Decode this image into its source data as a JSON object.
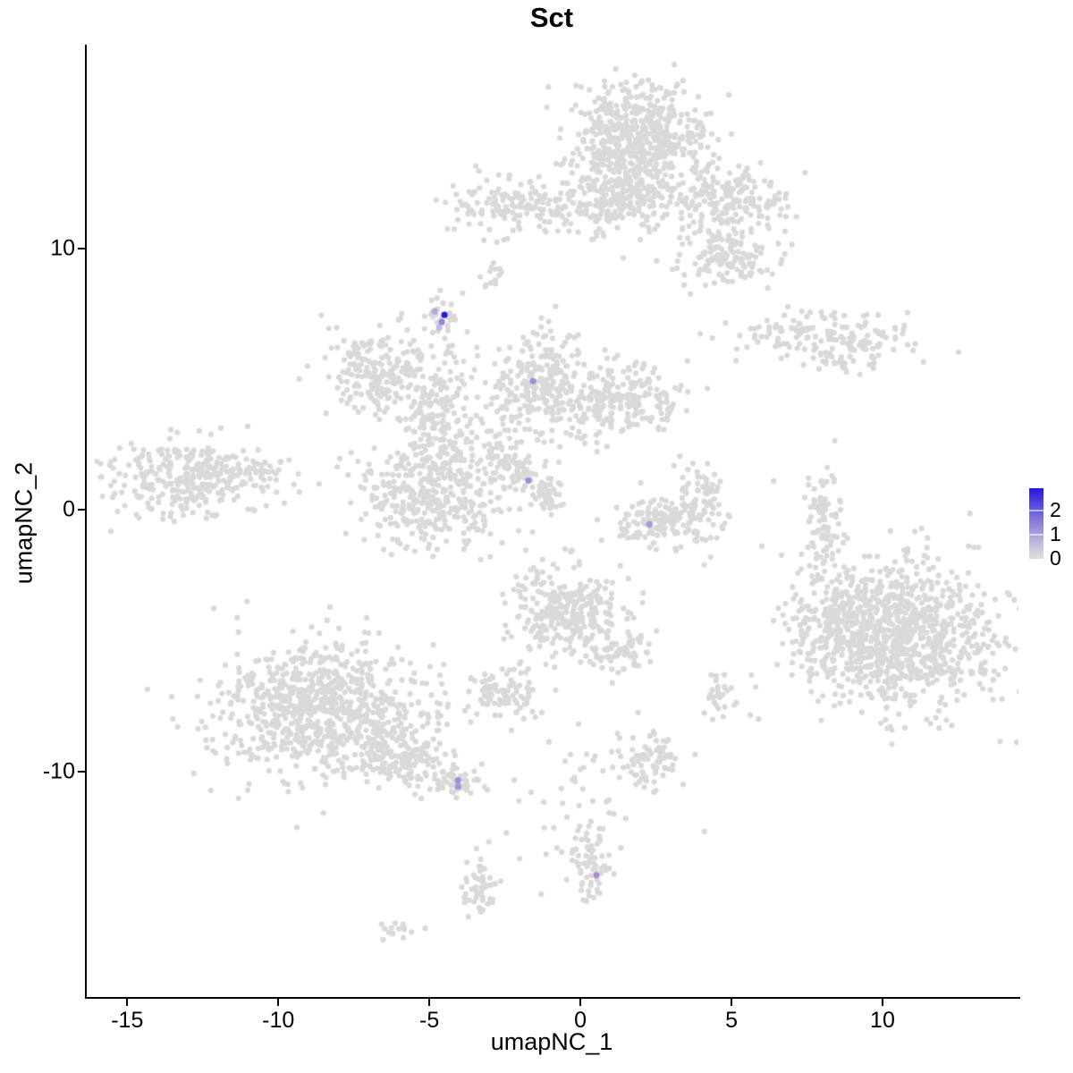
{
  "title": "Sct",
  "axes": {
    "x": {
      "label": "umapNC_1",
      "ticks": [
        -15,
        -10,
        -5,
        0,
        5,
        10
      ]
    },
    "y": {
      "label": "umapNC_2",
      "ticks": [
        10,
        0,
        -10
      ]
    }
  },
  "legend": {
    "ticks": [
      2,
      1,
      0
    ],
    "min": 0,
    "max": 2.9,
    "low_color": "#dcdcdc",
    "high_color": "#2517e0"
  },
  "chart_data": {
    "type": "scatter",
    "title": "Sct",
    "xlabel": "umapNC_1",
    "ylabel": "umapNC_2",
    "xlim": [
      -16.4,
      14.5
    ],
    "ylim": [
      -18.7,
      17.8
    ],
    "grid": false,
    "legend_position": "right",
    "base_point_color": "#d9d9d9",
    "point_radius_px": 3.1,
    "colorbar": {
      "min": 0,
      "max": 2.9,
      "ticks": [
        0,
        1,
        2
      ],
      "low": "#dcdcdc",
      "high": "#2517e0"
    },
    "clusters": [
      {
        "x": 1.8,
        "y": 14.3,
        "sx": 1.15,
        "sy": 0.95,
        "n": 550
      },
      {
        "x": 1.5,
        "y": 12.0,
        "sx": 0.85,
        "sy": 0.75,
        "n": 180
      },
      {
        "x": 4.8,
        "y": 11.9,
        "sx": 1.0,
        "sy": 0.65,
        "n": 200
      },
      {
        "x": 4.9,
        "y": 9.7,
        "sx": 0.8,
        "sy": 0.6,
        "n": 140
      },
      {
        "x": -2.1,
        "y": 11.6,
        "sx": 1.2,
        "sy": 0.55,
        "n": 160
      },
      {
        "x": 0.1,
        "y": 11.4,
        "sx": 0.6,
        "sy": 0.5,
        "n": 40
      },
      {
        "x": -2.9,
        "y": 8.9,
        "sx": 0.2,
        "sy": 0.35,
        "n": 14
      },
      {
        "x": 8.1,
        "y": 6.7,
        "sx": 1.5,
        "sy": 0.45,
        "n": 150
      },
      {
        "x": 8.8,
        "y": 5.9,
        "sx": 0.5,
        "sy": 0.3,
        "n": 35
      },
      {
        "x": -6.6,
        "y": 5.3,
        "sx": 0.95,
        "sy": 0.8,
        "n": 210
      },
      {
        "x": -4.8,
        "y": 3.7,
        "sx": 0.55,
        "sy": 0.8,
        "n": 110
      },
      {
        "x": -5.0,
        "y": 0.5,
        "sx": 1.2,
        "sy": 1.0,
        "n": 380
      },
      {
        "x": -1.3,
        "y": 4.9,
        "sx": 0.85,
        "sy": 0.95,
        "n": 260
      },
      {
        "x": 1.4,
        "y": 4.1,
        "sx": 1.0,
        "sy": 0.7,
        "n": 210
      },
      {
        "x": -2.6,
        "y": 2.1,
        "sx": 0.3,
        "sy": 0.3,
        "n": 40
      },
      {
        "x": -1.9,
        "y": 1.4,
        "sx": 0.3,
        "sy": 0.3,
        "n": 40
      },
      {
        "x": -1.1,
        "y": 0.6,
        "sx": 0.3,
        "sy": 0.3,
        "n": 40
      },
      {
        "x": -3.6,
        "y": 3.2,
        "sx": 1.3,
        "sy": 1.2,
        "n": 70
      },
      {
        "x": -13.1,
        "y": 1.2,
        "sx": 1.3,
        "sy": 0.75,
        "n": 300
      },
      {
        "x": -10.9,
        "y": 1.5,
        "sx": 0.7,
        "sy": 0.4,
        "n": 40
      },
      {
        "x": 3.0,
        "y": -0.5,
        "sx": 1.0,
        "sy": 0.5,
        "n": 160
      },
      {
        "x": 3.9,
        "y": 0.8,
        "sx": 0.35,
        "sy": 0.5,
        "n": 50
      },
      {
        "x": 8.0,
        "y": -0.2,
        "sx": 0.3,
        "sy": 1.2,
        "n": 80
      },
      {
        "x": 10.6,
        "y": -4.8,
        "sx": 1.6,
        "sy": 1.4,
        "n": 950
      },
      {
        "x": 8.3,
        "y": -4.3,
        "sx": 0.7,
        "sy": 1.1,
        "n": 160
      },
      {
        "x": -0.4,
        "y": -3.9,
        "sx": 1.0,
        "sy": 0.95,
        "n": 300
      },
      {
        "x": 1.4,
        "y": -5.4,
        "sx": 0.55,
        "sy": 0.4,
        "n": 60
      },
      {
        "x": -2.5,
        "y": -7.0,
        "sx": 0.6,
        "sy": 0.5,
        "n": 90
      },
      {
        "x": -8.5,
        "y": -7.7,
        "sx": 1.7,
        "sy": 1.3,
        "n": 850
      },
      {
        "x": -6.0,
        "y": -9.3,
        "sx": 0.8,
        "sy": 0.5,
        "n": 130
      },
      {
        "x": -4.3,
        "y": -10.3,
        "sx": 0.45,
        "sy": 0.3,
        "n": 55
      },
      {
        "x": 2.2,
        "y": -9.6,
        "sx": 0.5,
        "sy": 0.6,
        "n": 80
      },
      {
        "x": 4.5,
        "y": -7.2,
        "sx": 0.3,
        "sy": 0.45,
        "n": 30
      },
      {
        "x": 0.3,
        "y": -13.7,
        "sx": 0.35,
        "sy": 0.65,
        "n": 60
      },
      {
        "x": -3.4,
        "y": -14.4,
        "sx": 0.3,
        "sy": 0.6,
        "n": 50
      },
      {
        "x": -6.1,
        "y": -16.1,
        "sx": 0.35,
        "sy": 0.18,
        "n": 16
      },
      {
        "x": -0.2,
        "y": -11.2,
        "sx": 1.1,
        "sy": 1.3,
        "n": 45
      },
      {
        "x": -4.6,
        "y": 7.3,
        "sx": 0.35,
        "sy": 0.45,
        "n": 30
      },
      {
        "x": -4.2,
        "y": 5.2,
        "sx": 0.35,
        "sy": 0.9,
        "n": 16
      }
    ],
    "stray_points": [
      [
        3.1,
        1.7
      ],
      [
        2.7,
        0.4
      ],
      [
        4.1,
        -2.1
      ],
      [
        7.8,
        -2.7
      ],
      [
        8.8,
        -2.4
      ],
      [
        1.5,
        -11.8
      ],
      [
        4.1,
        -12.3
      ],
      [
        -1.3,
        -14.7
      ],
      [
        -3.3,
        -1.9
      ],
      [
        -1.8,
        -2.6
      ],
      [
        -1.3,
        7.0
      ],
      [
        -0.2,
        6.6
      ],
      [
        -3.9,
        8.3
      ],
      [
        6.4,
        1.1
      ],
      [
        3.4,
        -10.5
      ],
      [
        5.9,
        -8.0
      ]
    ],
    "expressing_cells": [
      {
        "x": -4.82,
        "y": 7.6,
        "value": 0.9,
        "color": "#b4a6de"
      },
      {
        "x": -4.5,
        "y": 7.47,
        "value": 2.6,
        "color": "#2121d8"
      },
      {
        "x": -4.59,
        "y": 7.19,
        "value": 1.2,
        "color": "#9a86d2"
      },
      {
        "x": -4.67,
        "y": 6.99,
        "value": 0.7,
        "color": "#c3b8e4"
      },
      {
        "x": -1.57,
        "y": 4.93,
        "value": 1.1,
        "color": "#a18bd8"
      },
      {
        "x": -1.72,
        "y": 1.13,
        "value": 1.1,
        "color": "#a38fd9"
      },
      {
        "x": 2.28,
        "y": -0.55,
        "value": 1.0,
        "color": "#ab99dc"
      },
      {
        "x": -4.05,
        "y": -10.34,
        "value": 1.1,
        "color": "#a38dd8"
      },
      {
        "x": -4.05,
        "y": -10.58,
        "value": 1.0,
        "color": "#a791da"
      },
      {
        "x": 0.53,
        "y": -13.97,
        "value": 1.1,
        "color": "#a98edc"
      }
    ]
  }
}
